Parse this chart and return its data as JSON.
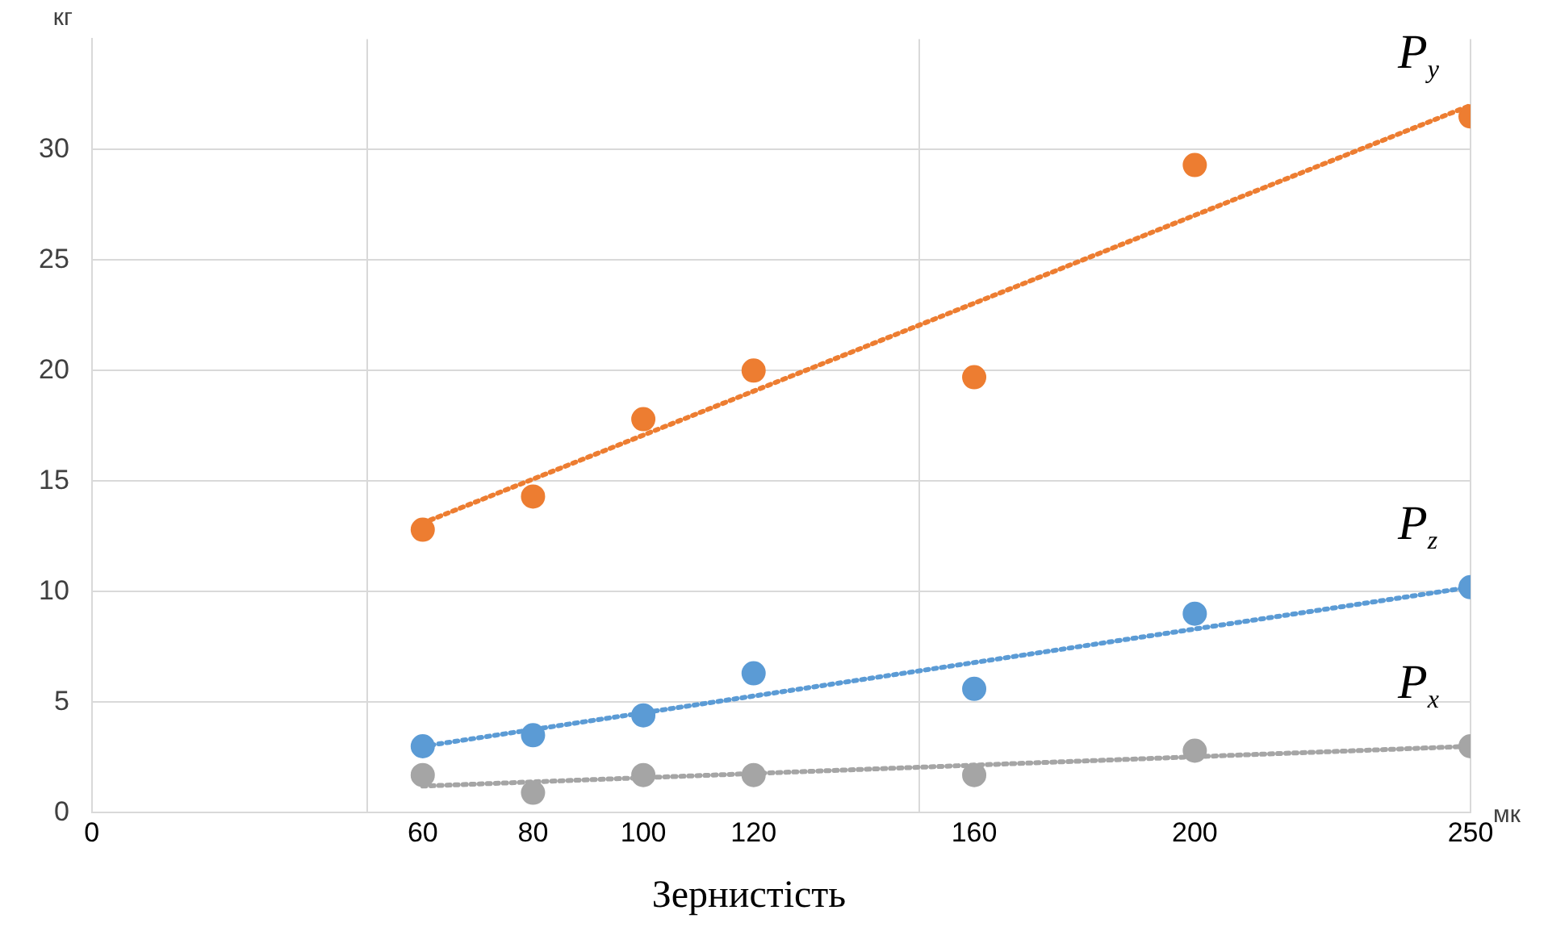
{
  "chart_data": {
    "type": "scatter",
    "xlabel": "Зернистість",
    "ylabel": "кг",
    "annotations": [
      "мк"
    ],
    "xlim": [
      0,
      250
    ],
    "xticks": [
      0,
      {
        "value": 50,
        "label": null
      },
      60,
      80,
      100,
      120,
      {
        "value": 150,
        "label": null
      },
      160,
      200,
      250
    ],
    "ylim": [
      0,
      35
    ],
    "yticks": [
      0,
      5,
      10,
      15,
      20,
      25,
      30
    ],
    "grid": true,
    "legend": false,
    "marker": "circle",
    "series": [
      {
        "name": "P$_{y}$",
        "color": "#ed7d31",
        "x": [
          60,
          80,
          100,
          120,
          160,
          200,
          250
        ],
        "values": [
          12.8,
          14.3,
          17.8,
          20.0,
          19.7,
          29.3,
          31.5
        ]
      },
      {
        "name": "P$_{z}$",
        "color": "#5b9bd5",
        "x": [
          60,
          80,
          100,
          120,
          160,
          200,
          250
        ],
        "values": [
          3.0,
          3.5,
          4.4,
          6.3,
          5.6,
          9.0,
          10.2
        ]
      },
      {
        "name": "P$_{x}$",
        "color": "#a5a5a5",
        "x": [
          60,
          80,
          100,
          120,
          160,
          200,
          250
        ],
        "values": [
          1.7,
          0.9,
          1.7,
          1.7,
          1.7,
          2.8,
          3.0
        ]
      },
      {
        "type": "line",
        "color": "#ed7d31",
        "line_style": "dotted",
        "marker": "none",
        "x": [
          60,
          250
        ],
        "values": [
          13.1,
          32.0
        ]
      },
      {
        "type": "line",
        "color": "#5b9bd5",
        "line_style": "dotted",
        "marker": "none",
        "x": [
          60,
          250
        ],
        "values": [
          3.0,
          10.2
        ]
      },
      {
        "type": "line",
        "color": "#a5a5a5",
        "line_style": "dotted",
        "marker": "none",
        "x": [
          60,
          250
        ],
        "values": [
          1.2,
          3.0
        ]
      }
    ]
  }
}
